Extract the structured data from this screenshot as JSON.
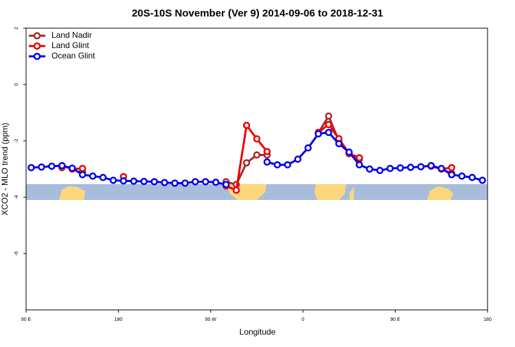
{
  "chart_data": {
    "type": "line",
    "title": "20S-10S November (Ver 9)   2014-09-06 to 2018-12-31",
    "xlabel": "Longitude",
    "ylabel": "XCO2 - MLO trend (ppm)",
    "xlim": [
      90,
      540
    ],
    "ylim": [
      -8,
      2
    ],
    "xticks": [
      {
        "value": 90,
        "label": "90 E"
      },
      180,
      {
        "value": 270,
        "label": "90 W"
      },
      {
        "value": 360,
        "label": "0"
      },
      {
        "value": 450,
        "label": "90 E"
      },
      {
        "value": 540,
        "label": "180"
      }
    ],
    "yticks": [
      2,
      0,
      -2,
      -4,
      -6
    ],
    "legend": "top-left",
    "x": [
      95,
      105,
      115,
      125,
      135,
      145,
      155,
      165,
      175,
      185,
      195,
      205,
      215,
      225,
      235,
      245,
      255,
      265,
      275,
      285,
      295,
      305,
      315,
      325,
      335,
      345,
      355,
      365,
      375,
      385,
      395,
      405,
      415,
      425,
      435,
      445,
      455,
      465,
      475,
      485,
      495,
      505,
      515,
      525,
      535
    ],
    "series": [
      {
        "name": "Land Nadir",
        "color": "#a52a2a",
        "values": [
          null,
          null,
          null,
          -2.95,
          null,
          -3.1,
          null,
          null,
          null,
          null,
          null,
          null,
          null,
          null,
          null,
          null,
          null,
          null,
          null,
          -3.45,
          -3.55,
          -2.78,
          -2.5,
          -2.5,
          null,
          null,
          null,
          null,
          -1.72,
          -1.12,
          -2.0,
          -2.45,
          -2.65,
          null,
          null,
          null,
          null,
          null,
          null,
          -2.9,
          -3.0,
          -3.15,
          null,
          null,
          null
        ]
      },
      {
        "name": "Land Glint",
        "color": "#ee0000",
        "values": [
          null,
          null,
          null,
          -2.88,
          -3.0,
          -2.98,
          null,
          null,
          null,
          -3.27,
          null,
          null,
          null,
          null,
          null,
          null,
          null,
          null,
          null,
          -3.6,
          -3.75,
          -1.45,
          -1.93,
          -2.38,
          null,
          null,
          null,
          null,
          -1.7,
          -1.42,
          -1.92,
          -2.45,
          -2.6,
          null,
          null,
          null,
          null,
          null,
          null,
          -2.88,
          -3.0,
          -2.95,
          null,
          null,
          null
        ]
      },
      {
        "name": "Ocean Glint",
        "color": "#0000ee",
        "values": [
          -2.95,
          -2.93,
          -2.9,
          -2.88,
          -2.97,
          -3.2,
          -3.25,
          -3.3,
          -3.4,
          -3.42,
          -3.43,
          -3.44,
          -3.45,
          -3.48,
          -3.5,
          -3.5,
          -3.45,
          -3.45,
          -3.47,
          -3.55,
          null,
          null,
          null,
          -2.75,
          -2.85,
          -2.85,
          -2.65,
          -2.25,
          -1.75,
          -1.7,
          -2.1,
          -2.4,
          -2.85,
          -3.0,
          -3.05,
          -2.98,
          -2.96,
          -2.94,
          -2.92,
          -2.88,
          -2.98,
          -3.2,
          -3.25,
          -3.3,
          -3.4
        ]
      }
    ]
  }
}
